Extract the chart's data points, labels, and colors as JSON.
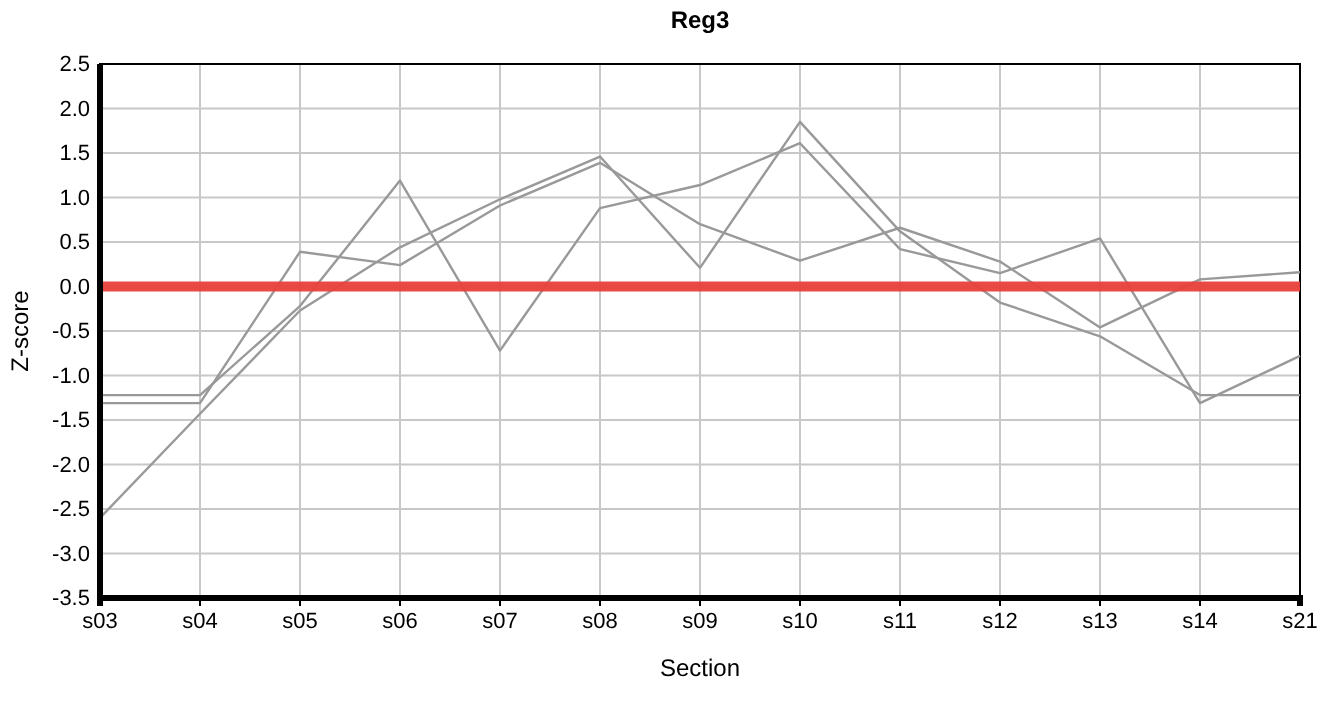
{
  "chart_data": {
    "type": "line",
    "title": "Reg3",
    "xlabel": "Section",
    "ylabel": "Z-score",
    "categories": [
      "s03",
      "s04",
      "s05",
      "s06",
      "s07",
      "s08",
      "s09",
      "s10",
      "s11",
      "s12",
      "s13",
      "s14",
      "s21"
    ],
    "series": [
      {
        "color": "#999999",
        "values": [
          -1.22,
          -1.22,
          -0.22,
          1.19,
          -0.72,
          0.88,
          1.14,
          1.61,
          0.42,
          0.15,
          0.54,
          -1.31,
          -0.78
        ]
      },
      {
        "color": "#999999",
        "values": [
          -1.31,
          -1.31,
          0.39,
          0.24,
          0.91,
          1.39,
          0.7,
          0.29,
          0.66,
          0.28,
          -0.46,
          0.08,
          0.16
        ]
      },
      {
        "color": "#999999",
        "values": [
          -2.6,
          -1.43,
          -0.27,
          0.44,
          0.98,
          1.46,
          0.21,
          1.85,
          0.62,
          -0.18,
          -0.56,
          -1.22,
          -1.22
        ]
      }
    ],
    "ylim": [
      -3.5,
      2.5
    ],
    "yticks": [
      {
        "value": -3.5,
        "label": "-3.5"
      },
      {
        "value": -3,
        "label": "-3.0"
      },
      {
        "value": -2.5,
        "label": "-2.5"
      },
      {
        "value": -2,
        "label": "-2.0"
      },
      {
        "value": -1.5,
        "label": "-1.5"
      },
      {
        "value": -1,
        "label": "-1.0"
      },
      {
        "value": -0.5,
        "label": "-0.5"
      },
      {
        "value": 0,
        "label": "0.0"
      },
      {
        "value": 0.5,
        "label": "0.5"
      },
      {
        "value": 1,
        "label": "1.0"
      },
      {
        "value": 1.5,
        "label": "1.5"
      },
      {
        "value": 2,
        "label": "2.0"
      },
      {
        "value": 2.5,
        "label": "2.5"
      }
    ],
    "ref_lines": [
      {
        "axis": "y",
        "value": 0,
        "color": "#e8403a"
      }
    ],
    "grid": true,
    "marker": "none",
    "line_style": "solid"
  }
}
